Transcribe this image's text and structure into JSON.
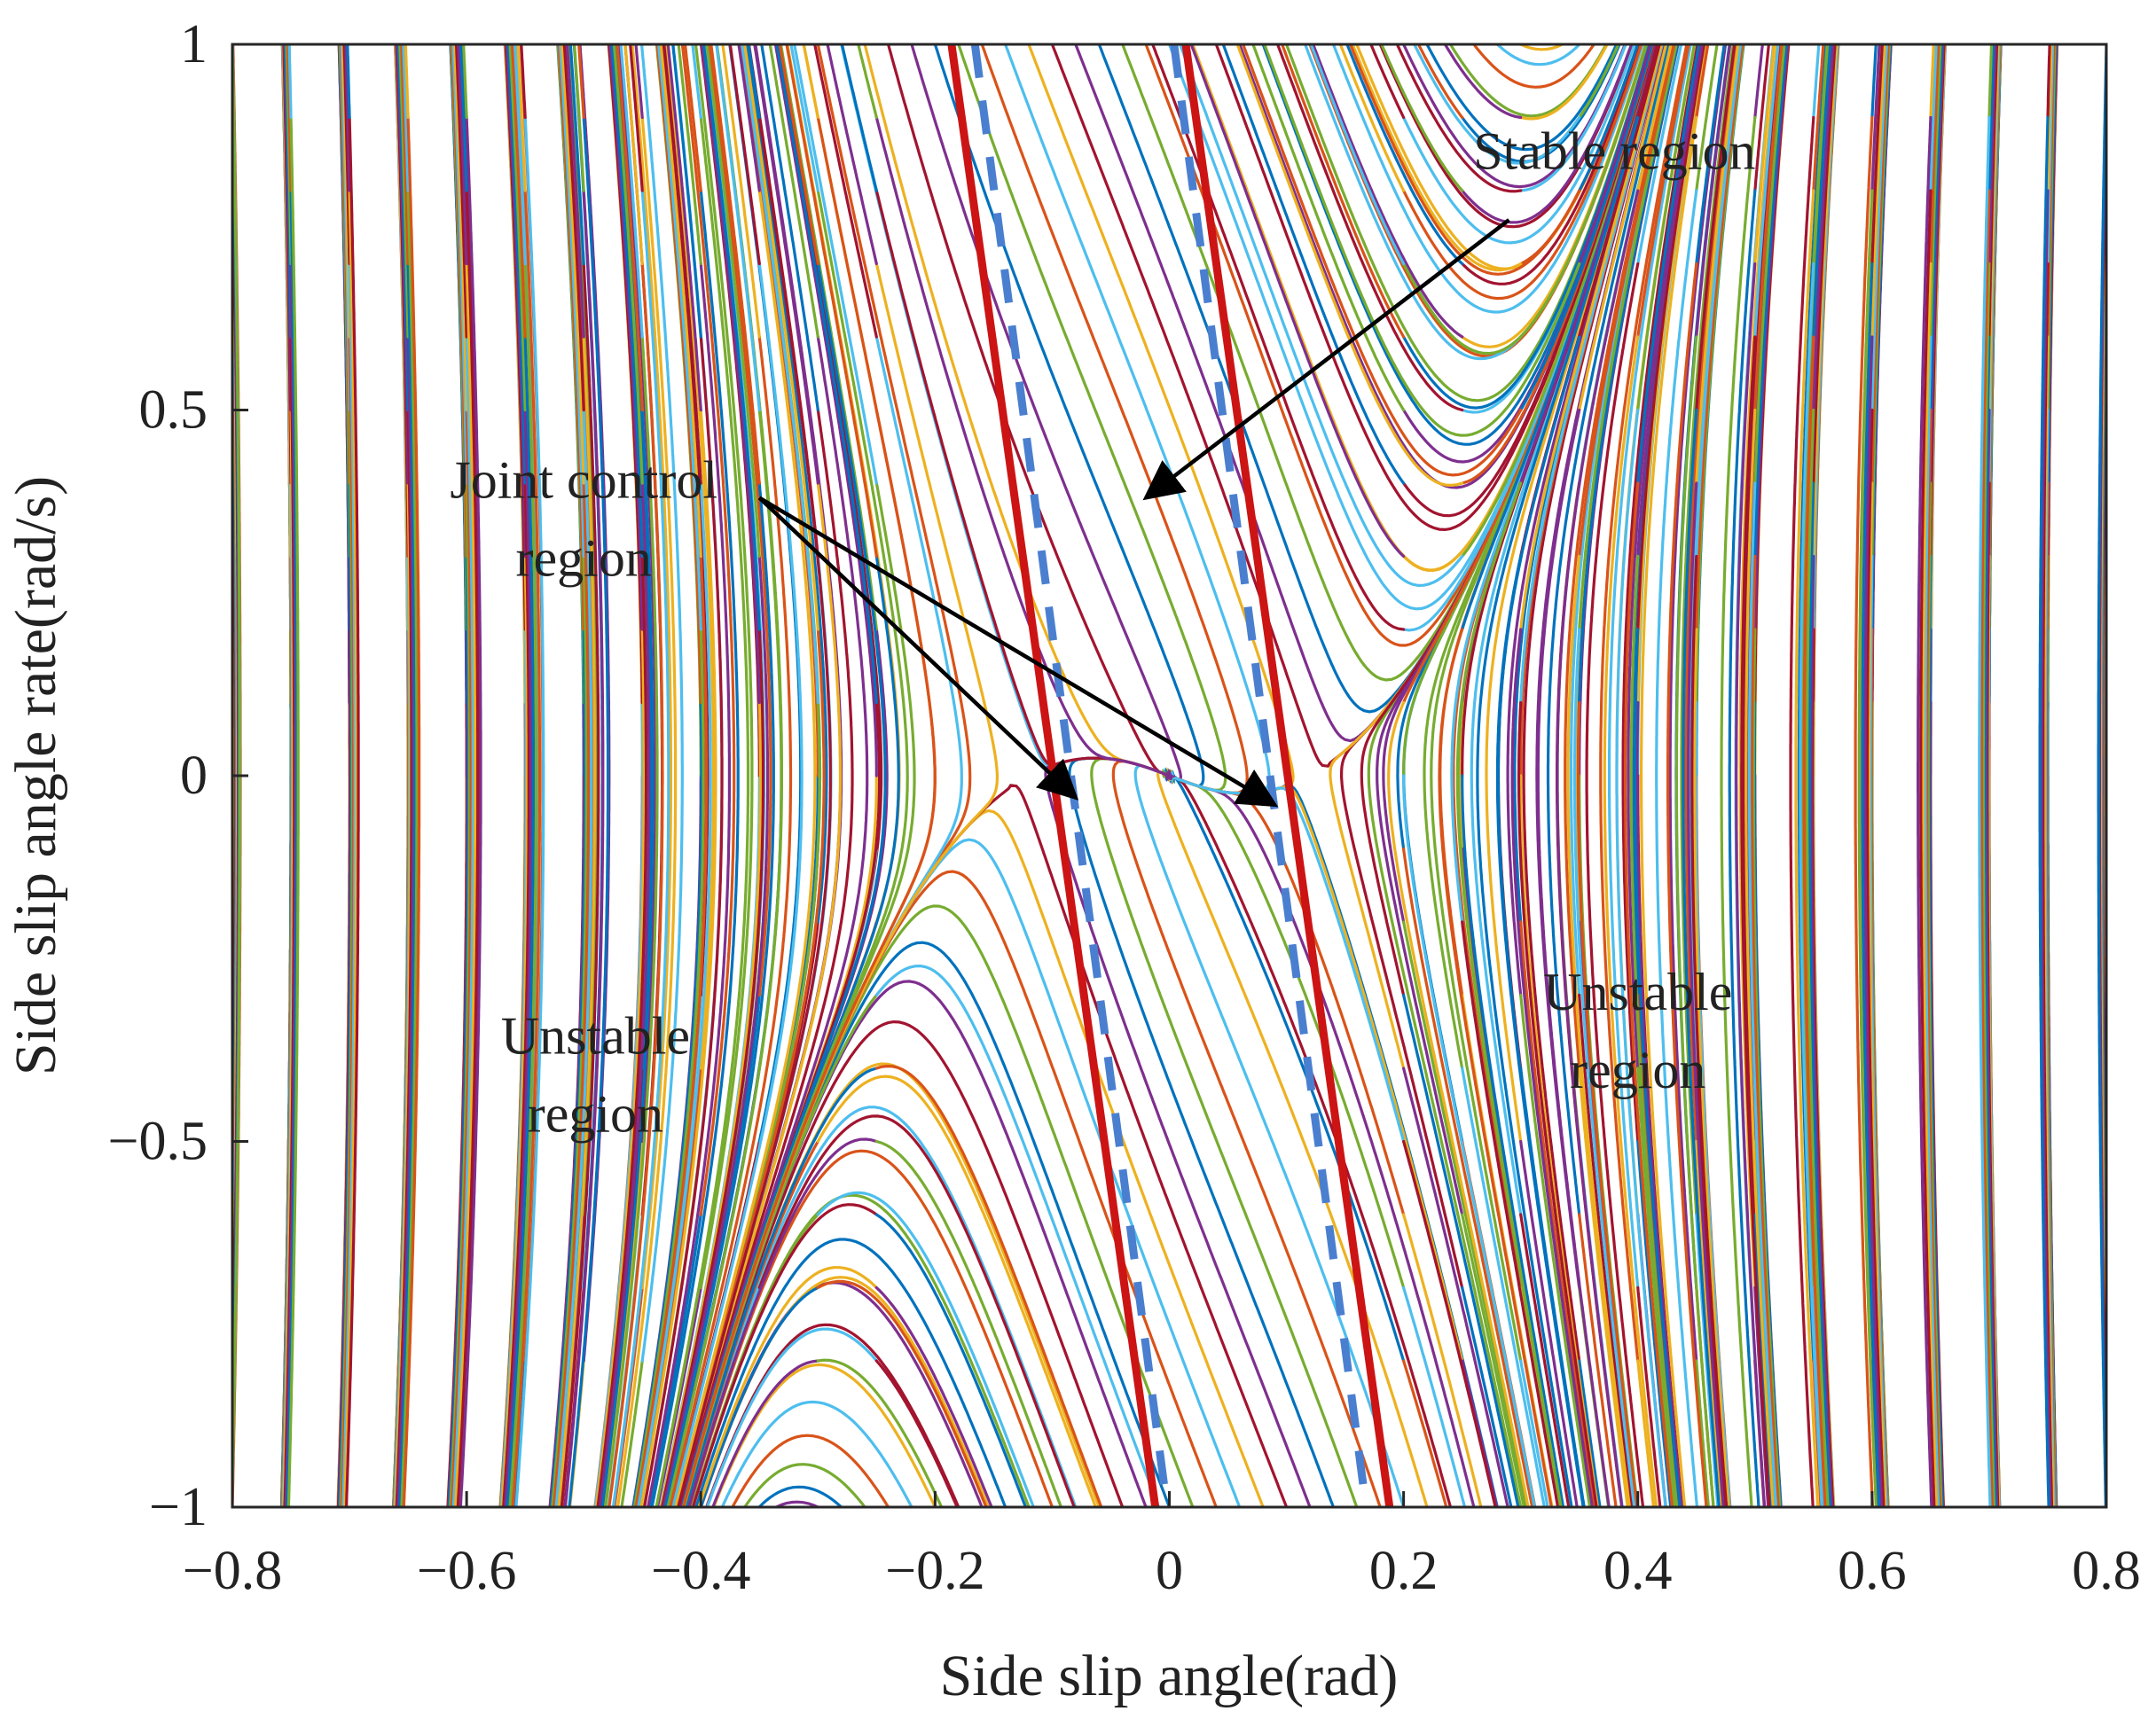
{
  "chart_data": {
    "type": "line",
    "title": "",
    "xlabel": "Side slip angle(rad)",
    "ylabel": "Side slip angle rate(rad/s)",
    "xlim": [
      -0.8,
      0.8
    ],
    "ylim": [
      -1,
      1
    ],
    "xticks": [
      -0.8,
      -0.6,
      -0.4,
      -0.2,
      0,
      0.2,
      0.4,
      0.6,
      0.8
    ],
    "xtick_labels": [
      "−0.8",
      "−0.6",
      "−0.4",
      "−0.2",
      "0",
      "0.2",
      "0.4",
      "0.6",
      "0.8"
    ],
    "yticks": [
      -1,
      -0.5,
      0,
      0.5,
      1
    ],
    "ytick_labels": [
      "−1",
      "−0.5",
      "0",
      "0.5",
      "1"
    ],
    "grid": false,
    "phase_portrait": {
      "description_values": {
        "saddle_points_x": [
          -0.1,
          0.1
        ],
        "equilibrium": [
          0,
          0
        ],
        "line_colors": [
          "#0072BD",
          "#D95319",
          "#EDB120",
          "#7E2F8E",
          "#77AC30",
          "#4DBEEE",
          "#A2142F"
        ]
      }
    },
    "boundaries": {
      "solid_red": {
        "color": "#CC1414",
        "left_line": [
          [
            -0.186,
            1
          ],
          [
            -0.012,
            -1
          ]
        ],
        "right_line": [
          [
            0.014,
            1
          ],
          [
            0.188,
            -1
          ]
        ]
      },
      "dashed_blue": {
        "color": "#4A7FD0",
        "left_line": [
          [
            -0.166,
            1
          ],
          [
            -0.002,
            -1
          ]
        ],
        "right_line": [
          [
            0.004,
            1
          ],
          [
            0.168,
            -1
          ]
        ]
      }
    },
    "annotations": [
      {
        "text_lines": [
          "Stable region"
        ],
        "text_at": [
          0.38,
          0.83
        ],
        "arrow_from": [
          0.29,
          0.76
        ],
        "arrow_to": [
          -0.02,
          0.38
        ]
      },
      {
        "text_lines": [
          "Joint control",
          "region"
        ],
        "text_at": [
          -0.5,
          0.38
        ],
        "arrows": [
          {
            "from": [
              -0.35,
              0.38
            ],
            "to": [
              -0.08,
              -0.03
            ]
          },
          {
            "from": [
              -0.35,
              0.38
            ],
            "to": [
              0.09,
              -0.04
            ]
          }
        ]
      },
      {
        "text_lines": [
          "Unstable",
          "region"
        ],
        "text_at": [
          -0.49,
          -0.38
        ]
      },
      {
        "text_lines": [
          "Unstable",
          "region"
        ],
        "text_at": [
          0.4,
          -0.32
        ]
      }
    ]
  }
}
